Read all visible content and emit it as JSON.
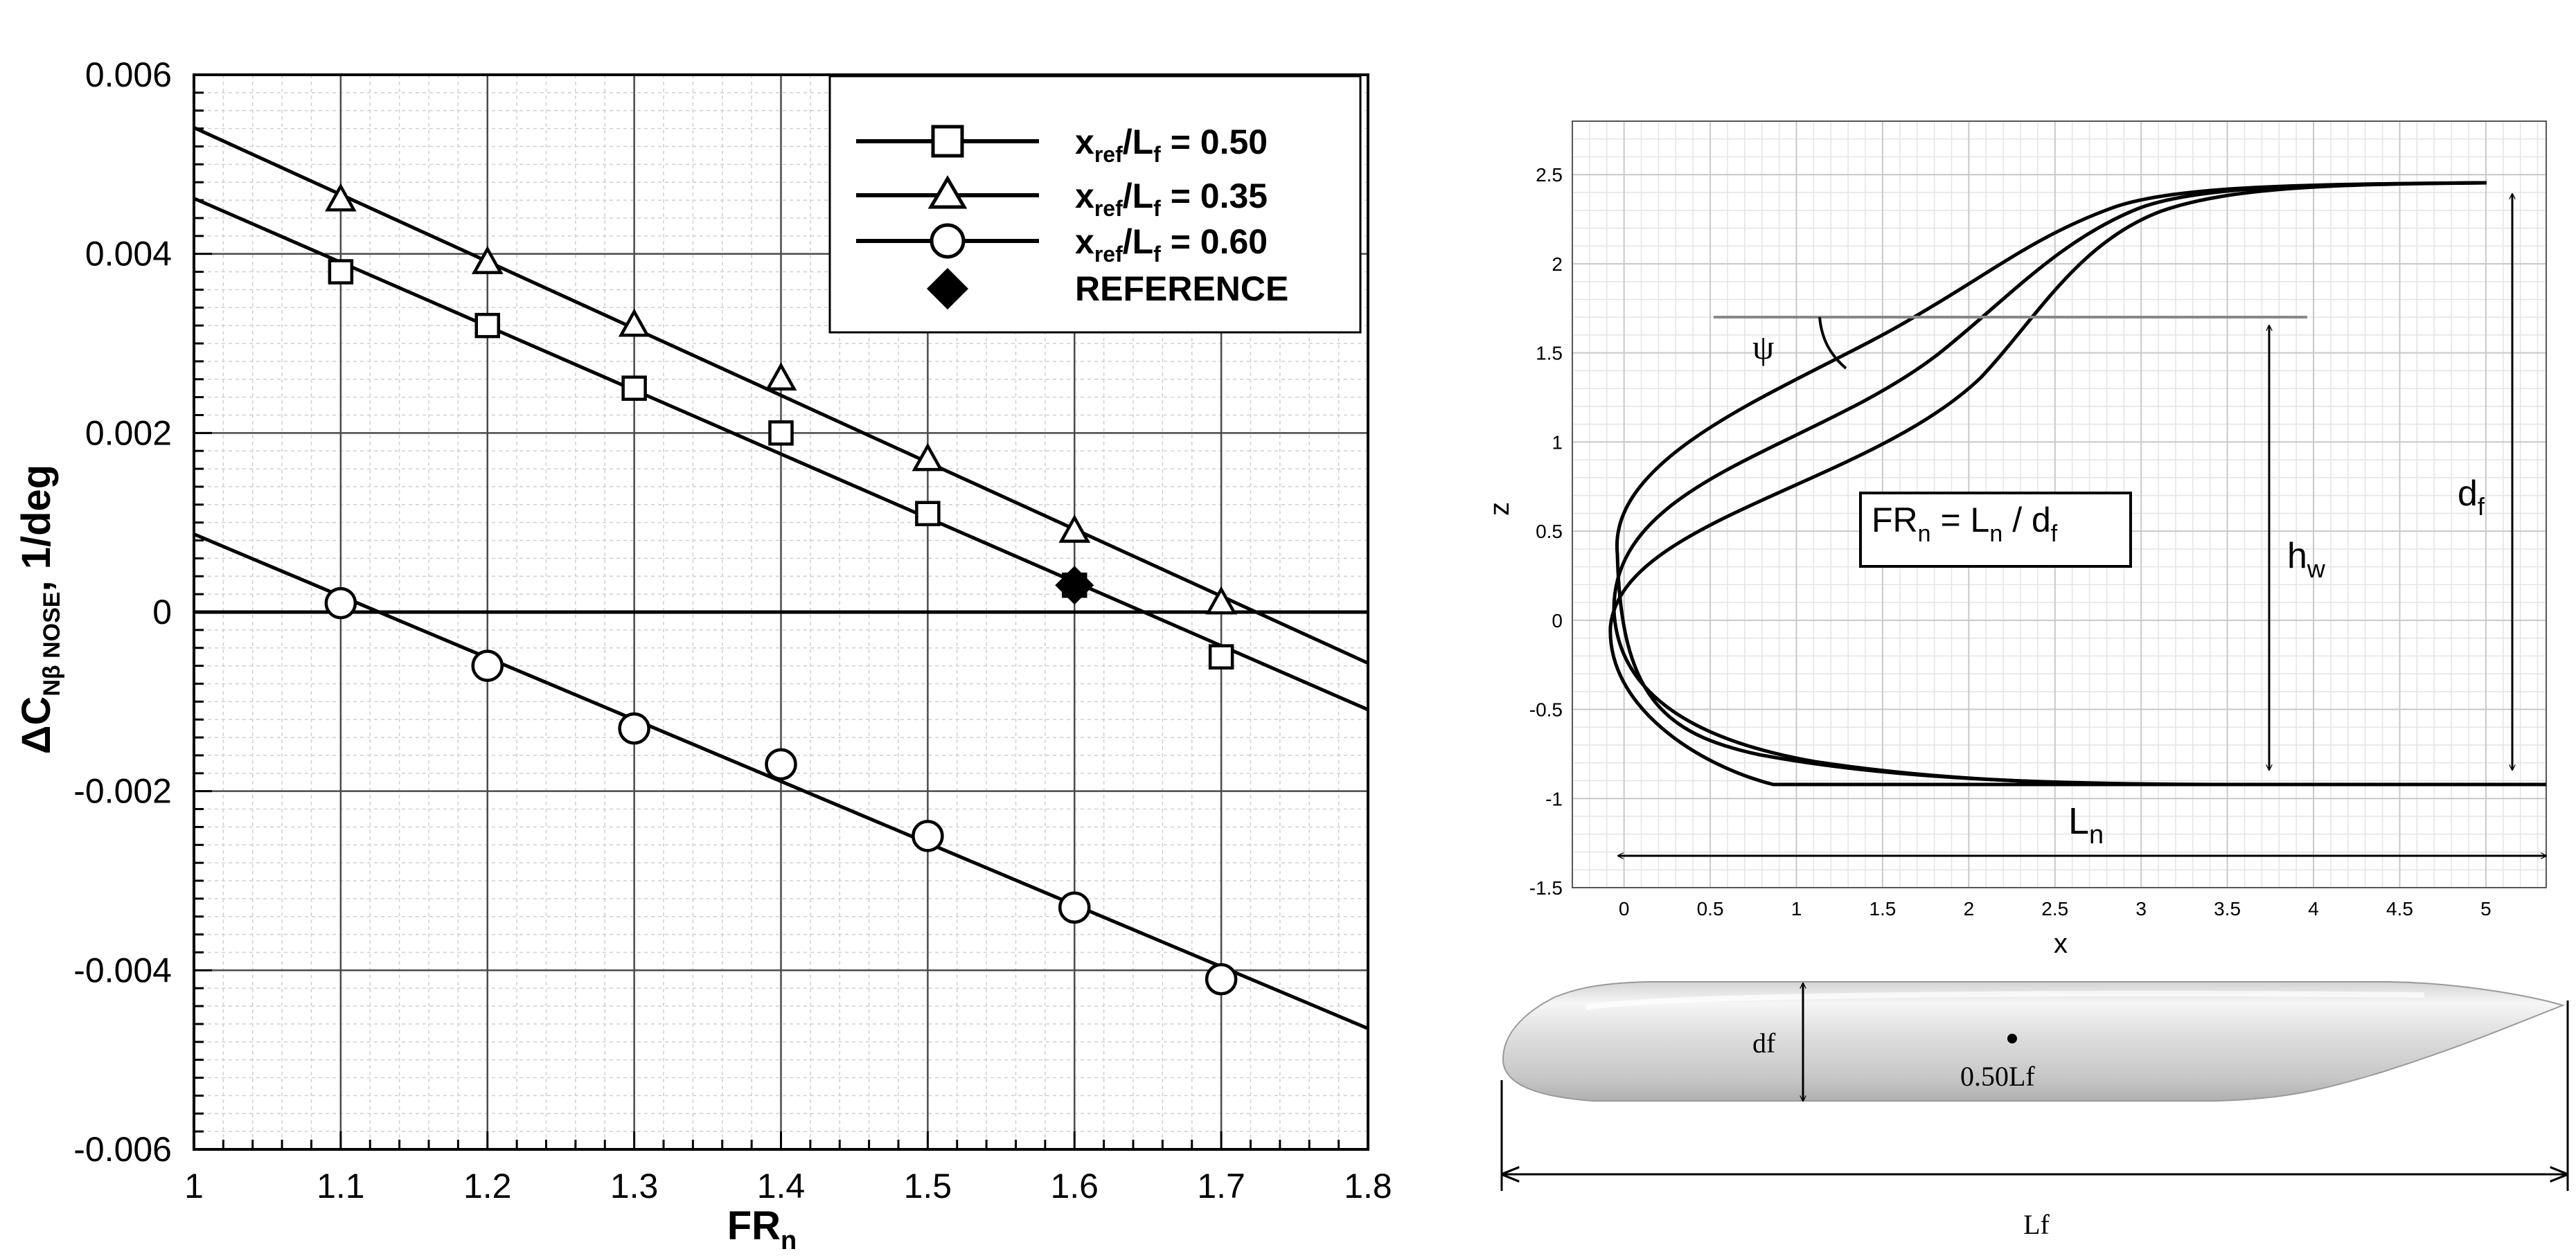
{
  "chart_data": [
    {
      "type": "line",
      "title": "",
      "xlabel": "FR",
      "xlabel_sub": "n",
      "ylabel": "ΔC",
      "ylabel_sub": "Nβ NOSE",
      "ylabel_unit": ", 1/deg",
      "xlim": [
        1.0,
        1.8
      ],
      "ylim": [
        -0.006,
        0.006
      ],
      "xticks": [
        "1",
        "1.1",
        "1.2",
        "1.3",
        "1.4",
        "1.5",
        "1.6",
        "1.7",
        "1.8"
      ],
      "yticks": [
        "-0.006",
        "-0.004",
        "-0.002",
        "0",
        "0.002",
        "0.004",
        "0.006"
      ],
      "grid": true,
      "legend_position": "top-right",
      "series": [
        {
          "name": "x",
          "name_sub": "ref",
          "name_mid": "/L",
          "name_sub2": "f",
          "name_tail": " = 0.50",
          "marker": "square",
          "x": [
            1.1,
            1.2,
            1.3,
            1.4,
            1.5,
            1.6,
            1.7
          ],
          "y": [
            0.0038,
            0.0032,
            0.0025,
            0.002,
            0.0011,
            0.0003,
            -0.0005
          ],
          "fit": [
            [
              1.0,
              0.00462
            ],
            [
              1.8,
              -0.00109
            ]
          ]
        },
        {
          "name": "x",
          "name_sub": "ref",
          "name_mid": "/L",
          "name_sub2": "f",
          "name_tail": " = 0.35",
          "marker": "triangle",
          "x": [
            1.1,
            1.2,
            1.3,
            1.4,
            1.5,
            1.6,
            1.7
          ],
          "y": [
            0.0046,
            0.0039,
            0.0032,
            0.0026,
            0.0017,
            0.0009,
            0.0001
          ],
          "fit": [
            [
              1.0,
              0.00541
            ],
            [
              1.8,
              -0.00057
            ]
          ]
        },
        {
          "name": "x",
          "name_sub": "ref",
          "name_mid": "/L",
          "name_sub2": "f",
          "name_tail": " = 0.60",
          "marker": "circle",
          "x": [
            1.1,
            1.2,
            1.3,
            1.4,
            1.5,
            1.6,
            1.7
          ],
          "y": [
            0.0001,
            -0.0006,
            -0.0013,
            -0.0017,
            -0.0025,
            -0.0033,
            -0.0041
          ],
          "fit": [
            [
              1.0,
              0.00087
            ],
            [
              1.8,
              -0.00465
            ]
          ]
        },
        {
          "name": "REFERENCE",
          "marker": "diamond",
          "x": [
            1.6
          ],
          "y": [
            0.0003
          ]
        }
      ]
    },
    {
      "type": "line",
      "title": "",
      "xlabel": "x",
      "ylabel": "z",
      "xlim": [
        -0.3,
        5.35
      ],
      "ylim": [
        -1.5,
        2.8
      ],
      "xticks": [
        "0",
        "0.5",
        "1",
        "1.5",
        "2",
        "2.5",
        "3",
        "3.5",
        "4",
        "4.5",
        "5"
      ],
      "yticks": [
        "-1.5",
        "-1",
        "-0.5",
        "0",
        "0.5",
        "1",
        "1.5",
        "2",
        "2.5"
      ],
      "grid": true
    }
  ],
  "diagram": {
    "formula": {
      "a": "FR",
      "a_sub": "n",
      "b": " = L",
      "b_sub": "n",
      "c": " / d",
      "c_sub": "f"
    },
    "psi_label": "ψ",
    "hw_label": "h",
    "hw_sub": "w",
    "df_label": "d",
    "df_sub": "f",
    "ln_label": "L",
    "ln_sub": "n",
    "body_df_label": "df",
    "body_ref_label": "0.50Lf",
    "body_lf_label": "Lf"
  }
}
